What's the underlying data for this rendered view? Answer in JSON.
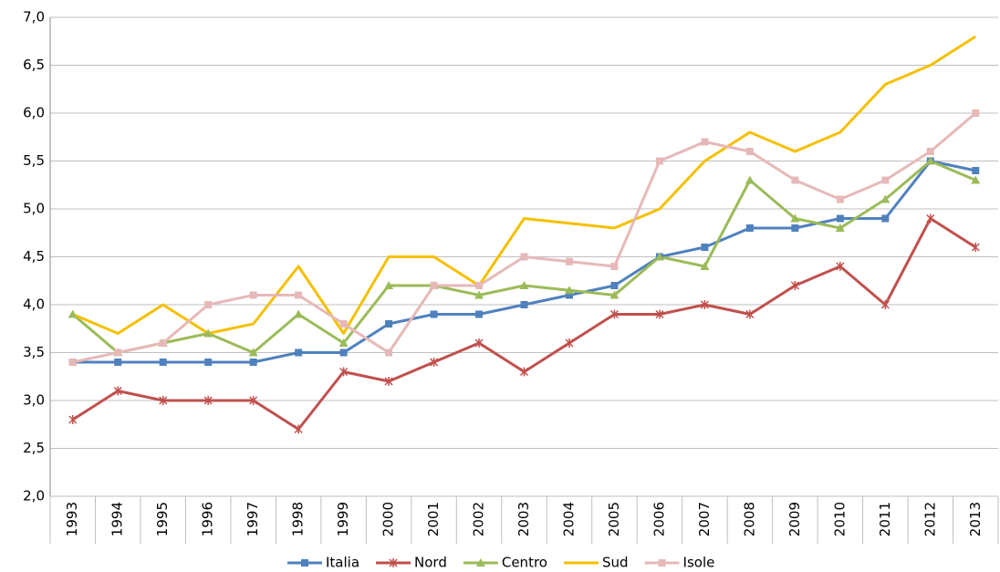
{
  "chart_data": {
    "type": "line",
    "categories": [
      "1993",
      "1994",
      "1995",
      "1996",
      "1997",
      "1998",
      "1999",
      "2000",
      "2001",
      "2002",
      "2003",
      "2004",
      "2005",
      "2006",
      "2007",
      "2008",
      "2009",
      "2010",
      "2011",
      "2012",
      "2013"
    ],
    "series": [
      {
        "name": "Italia",
        "color": "#4f81bd",
        "marker": "square",
        "values": [
          3.4,
          3.4,
          3.4,
          3.4,
          3.4,
          3.5,
          3.5,
          3.8,
          3.9,
          3.9,
          4.0,
          4.1,
          4.2,
          4.5,
          4.6,
          4.8,
          4.8,
          4.9,
          4.9,
          5.5,
          5.4
        ]
      },
      {
        "name": "Nord",
        "color": "#c0504d",
        "marker": "x",
        "values": [
          2.8,
          3.1,
          3.0,
          3.0,
          3.0,
          2.7,
          3.3,
          3.2,
          3.4,
          3.6,
          3.3,
          3.6,
          3.9,
          3.9,
          4.0,
          3.9,
          4.2,
          4.4,
          4.0,
          4.9,
          4.6
        ]
      },
      {
        "name": "Centro",
        "color": "#9bbb59",
        "marker": "triangle",
        "values": [
          3.9,
          3.5,
          3.6,
          3.7,
          3.5,
          3.9,
          3.6,
          4.2,
          4.2,
          4.1,
          4.2,
          4.15,
          4.1,
          4.5,
          4.4,
          5.3,
          4.9,
          4.8,
          5.1,
          5.5,
          5.3
        ]
      },
      {
        "name": "Sud",
        "color": "#f5c000",
        "marker": "none",
        "values": [
          3.9,
          3.7,
          4.0,
          3.7,
          3.8,
          4.4,
          3.7,
          4.5,
          4.5,
          4.2,
          4.9,
          4.85,
          4.8,
          5.0,
          5.5,
          5.8,
          5.6,
          5.8,
          6.3,
          6.5,
          6.8
        ]
      },
      {
        "name": "Isole",
        "color": "#e6b9b8",
        "marker": "square",
        "values": [
          3.4,
          3.5,
          3.6,
          4.0,
          4.1,
          4.1,
          3.8,
          3.5,
          4.2,
          4.2,
          4.5,
          4.45,
          4.4,
          5.5,
          5.7,
          5.6,
          5.3,
          5.1,
          5.3,
          5.6,
          6.0
        ]
      }
    ],
    "ylim": [
      2,
      7
    ],
    "yticks": [
      {
        "value": 2,
        "label": "2,0"
      },
      {
        "value": 2.5,
        "label": "2,5"
      },
      {
        "value": 3,
        "label": "3,0"
      },
      {
        "value": 3.5,
        "label": "3,5"
      },
      {
        "value": 4,
        "label": "4,0"
      },
      {
        "value": 4.5,
        "label": "4,5"
      },
      {
        "value": 5,
        "label": "5,0"
      },
      {
        "value": 5.5,
        "label": "5,5"
      },
      {
        "value": 6,
        "label": "6,0"
      },
      {
        "value": 6.5,
        "label": "6,5"
      },
      {
        "value": 7,
        "label": "7,0"
      }
    ],
    "grid": true,
    "legend": "bottom"
  }
}
